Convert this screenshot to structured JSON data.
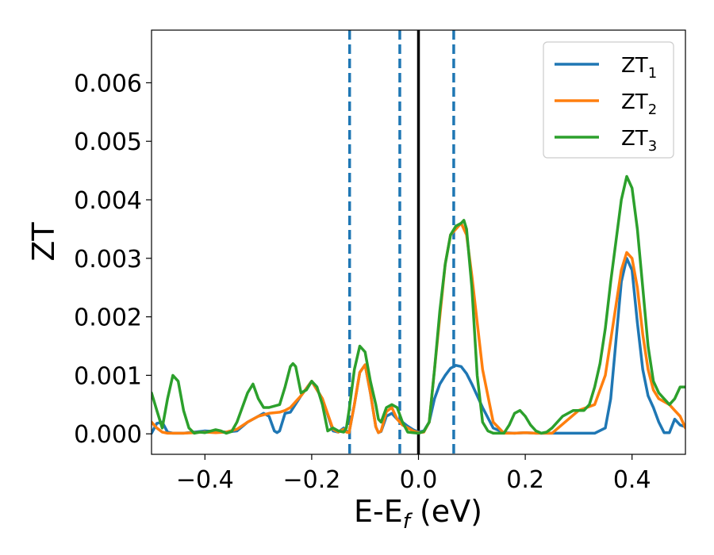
{
  "chart_data": {
    "type": "line",
    "title": "",
    "xlabel": "E-E",
    "xlabel_sub": "f",
    "xlabel_unit": " (eV)",
    "ylabel": "ZT",
    "xlim": [
      -0.5,
      0.5
    ],
    "ylim": [
      -0.00035,
      0.0069
    ],
    "xticks": [
      -0.4,
      -0.2,
      0.0,
      0.2,
      0.4
    ],
    "xtick_labels": [
      "−0.4",
      "−0.2",
      "0.0",
      "0.2",
      "0.4"
    ],
    "yticks": [
      0.0,
      0.001,
      0.002,
      0.003,
      0.004,
      0.005,
      0.006
    ],
    "ytick_labels": [
      "0.000",
      "0.001",
      "0.002",
      "0.003",
      "0.004",
      "0.005",
      "0.006"
    ],
    "grid": false,
    "legend_position": "top-right",
    "vertical_lines": [
      {
        "x": -0.129,
        "style": "dashed",
        "color": "#1f77b4"
      },
      {
        "x": -0.035,
        "style": "dashed",
        "color": "#1f77b4"
      },
      {
        "x": 0.0,
        "style": "solid",
        "color": "#000000"
      },
      {
        "x": 0.066,
        "style": "dashed",
        "color": "#1f77b4"
      }
    ],
    "series": [
      {
        "name": "ZT",
        "name_sub": "1",
        "color": "#1f77b4",
        "x": [
          -0.5,
          -0.49,
          -0.48,
          -0.47,
          -0.46,
          -0.45,
          -0.44,
          -0.42,
          -0.4,
          -0.38,
          -0.36,
          -0.34,
          -0.32,
          -0.3,
          -0.29,
          -0.28,
          -0.27,
          -0.265,
          -0.26,
          -0.25,
          -0.24,
          -0.22,
          -0.2,
          -0.18,
          -0.16,
          -0.15,
          -0.14,
          -0.135,
          -0.13,
          -0.12,
          -0.11,
          -0.1,
          -0.09,
          -0.08,
          -0.075,
          -0.07,
          -0.06,
          -0.05,
          -0.04,
          -0.03,
          -0.02,
          -0.01,
          0.0,
          0.01,
          0.02,
          0.03,
          0.04,
          0.05,
          0.06,
          0.07,
          0.08,
          0.09,
          0.1,
          0.12,
          0.14,
          0.16,
          0.18,
          0.2,
          0.22,
          0.25,
          0.28,
          0.3,
          0.33,
          0.35,
          0.36,
          0.37,
          0.38,
          0.39,
          0.4,
          0.41,
          0.42,
          0.43,
          0.44,
          0.45,
          0.46,
          0.47,
          0.48,
          0.49,
          0.5
        ],
        "y": [
          1e-05,
          0.00018,
          0.0002,
          3e-05,
          1e-05,
          1e-05,
          1e-05,
          3e-05,
          5e-05,
          4e-05,
          3e-05,
          5e-05,
          0.0002,
          0.0003,
          0.00035,
          0.0003,
          5e-05,
          2e-05,
          5e-05,
          0.00035,
          0.00037,
          0.00065,
          0.0009,
          0.0006,
          5e-05,
          3e-05,
          0.0001,
          5e-05,
          2e-05,
          0.0005,
          0.00105,
          0.00118,
          0.0007,
          0.00012,
          2e-05,
          4e-05,
          0.0003,
          0.00035,
          0.00025,
          0.0002,
          0.00013,
          7e-05,
          3e-05,
          5e-05,
          0.0002,
          0.0006,
          0.00085,
          0.001,
          0.00112,
          0.00117,
          0.00115,
          0.00103,
          0.00085,
          0.00045,
          0.0001,
          2e-05,
          1e-05,
          2e-05,
          1e-05,
          1e-05,
          1e-05,
          1e-05,
          1e-05,
          0.0001,
          0.0006,
          0.0016,
          0.0026,
          0.003,
          0.0028,
          0.0019,
          0.0011,
          0.00065,
          0.00045,
          0.0002,
          2e-05,
          2e-05,
          0.00025,
          0.00015,
          0.00012
        ]
      },
      {
        "name": "ZT",
        "name_sub": "2",
        "color": "#ff7f0e",
        "x": [
          -0.5,
          -0.49,
          -0.48,
          -0.47,
          -0.46,
          -0.44,
          -0.42,
          -0.4,
          -0.38,
          -0.36,
          -0.34,
          -0.32,
          -0.3,
          -0.28,
          -0.26,
          -0.25,
          -0.24,
          -0.22,
          -0.2,
          -0.18,
          -0.16,
          -0.15,
          -0.14,
          -0.135,
          -0.13,
          -0.12,
          -0.11,
          -0.1,
          -0.09,
          -0.08,
          -0.075,
          -0.07,
          -0.06,
          -0.05,
          -0.04,
          -0.03,
          -0.02,
          -0.01,
          0.0,
          0.01,
          0.02,
          0.03,
          0.04,
          0.05,
          0.06,
          0.07,
          0.08,
          0.09,
          0.1,
          0.12,
          0.14,
          0.16,
          0.18,
          0.2,
          0.22,
          0.25,
          0.3,
          0.33,
          0.35,
          0.36,
          0.37,
          0.38,
          0.39,
          0.4,
          0.41,
          0.42,
          0.43,
          0.44,
          0.45,
          0.46,
          0.47,
          0.48,
          0.49,
          0.5
        ],
        "y": [
          0.0002,
          0.0001,
          3e-05,
          1e-05,
          1e-05,
          1e-05,
          2e-05,
          3e-05,
          2e-05,
          3e-05,
          8e-05,
          0.0002,
          0.0003,
          0.00035,
          0.00037,
          0.0004,
          0.00045,
          0.00065,
          0.0009,
          0.0006,
          8e-05,
          3e-05,
          8e-05,
          3e-05,
          2e-05,
          0.0005,
          0.00105,
          0.00118,
          0.0007,
          0.00012,
          2e-05,
          5e-05,
          0.00038,
          0.00045,
          0.00025,
          0.00015,
          0.0001,
          5e-05,
          2e-05,
          3e-05,
          0.0002,
          0.0011,
          0.002,
          0.0029,
          0.0034,
          0.0035,
          0.0036,
          0.0034,
          0.0027,
          0.0011,
          0.0002,
          1e-05,
          1e-05,
          2e-05,
          1e-05,
          1e-05,
          0.0004,
          0.0005,
          0.001,
          0.0016,
          0.0022,
          0.0028,
          0.0031,
          0.003,
          0.0025,
          0.0017,
          0.0011,
          0.00075,
          0.0006,
          0.00055,
          0.0005,
          0.0004,
          0.0003,
          0.0001
        ]
      },
      {
        "name": "ZT",
        "name_sub": "3",
        "color": "#2ca02c",
        "x": [
          -0.5,
          -0.49,
          -0.48,
          -0.47,
          -0.46,
          -0.45,
          -0.44,
          -0.43,
          -0.42,
          -0.41,
          -0.4,
          -0.38,
          -0.37,
          -0.36,
          -0.35,
          -0.34,
          -0.32,
          -0.31,
          -0.3,
          -0.29,
          -0.28,
          -0.26,
          -0.25,
          -0.24,
          -0.235,
          -0.23,
          -0.22,
          -0.21,
          -0.2,
          -0.19,
          -0.18,
          -0.17,
          -0.16,
          -0.15,
          -0.14,
          -0.135,
          -0.13,
          -0.12,
          -0.11,
          -0.1,
          -0.09,
          -0.08,
          -0.075,
          -0.07,
          -0.06,
          -0.05,
          -0.04,
          -0.03,
          -0.02,
          -0.01,
          0.0,
          0.01,
          0.02,
          0.03,
          0.04,
          0.05,
          0.06,
          0.07,
          0.08,
          0.085,
          0.09,
          0.1,
          0.11,
          0.12,
          0.13,
          0.14,
          0.15,
          0.16,
          0.17,
          0.18,
          0.19,
          0.2,
          0.21,
          0.22,
          0.23,
          0.24,
          0.25,
          0.27,
          0.29,
          0.3,
          0.31,
          0.32,
          0.33,
          0.34,
          0.35,
          0.36,
          0.37,
          0.38,
          0.39,
          0.4,
          0.41,
          0.42,
          0.43,
          0.44,
          0.45,
          0.46,
          0.47,
          0.48,
          0.49,
          0.5
        ],
        "y": [
          0.0007,
          0.0004,
          0.0001,
          0.0006,
          0.001,
          0.0009,
          0.0004,
          0.0001,
          1e-05,
          3e-05,
          2e-05,
          7e-05,
          5e-05,
          1e-05,
          4e-05,
          0.0002,
          0.0007,
          0.00085,
          0.0006,
          0.00045,
          0.00045,
          0.0005,
          0.0008,
          0.00115,
          0.0012,
          0.00115,
          0.0007,
          0.00075,
          0.0009,
          0.0008,
          0.0005,
          5e-05,
          0.0001,
          5e-05,
          3e-05,
          0.0001,
          0.0004,
          0.0011,
          0.0015,
          0.0014,
          0.0009,
          0.0005,
          0.00025,
          0.0002,
          0.00045,
          0.0005,
          0.00045,
          0.0002,
          3e-05,
          2e-05,
          1e-05,
          4e-05,
          0.0002,
          0.0011,
          0.0021,
          0.0029,
          0.0034,
          0.00355,
          0.0036,
          0.00365,
          0.0035,
          0.0025,
          0.001,
          0.0002,
          5e-05,
          1e-05,
          1e-05,
          1e-05,
          0.00015,
          0.00035,
          0.0004,
          0.0003,
          0.00015,
          5e-05,
          1e-05,
          3e-05,
          0.0001,
          0.0003,
          0.0004,
          0.0004,
          0.0004,
          0.0005,
          0.0008,
          0.0012,
          0.0018,
          0.0026,
          0.0033,
          0.004,
          0.0044,
          0.0042,
          0.0035,
          0.0025,
          0.0015,
          0.0009,
          0.0007,
          0.0006,
          0.0005,
          0.0006,
          0.0008,
          0.0008
        ]
      }
    ]
  }
}
